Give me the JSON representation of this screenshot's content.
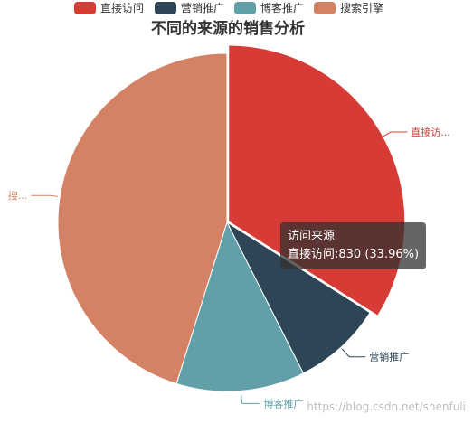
{
  "chart_data": {
    "type": "pie",
    "title": "不同的来源的销售分析",
    "legend_position": "top",
    "series_name": "访问来源",
    "slices": [
      {
        "name": "直接访问",
        "value": 830,
        "color": "#d63c35",
        "label": "直接访..."
      },
      {
        "name": "营销推广",
        "value": 210,
        "color": "#2e4556",
        "label": "营销推广"
      },
      {
        "name": "博客推广",
        "value": 300,
        "color": "#61a0a8",
        "label": "博客推广"
      },
      {
        "name": "搜索引擎",
        "value": 1104,
        "color": "#d48265",
        "label": "搜..."
      }
    ]
  },
  "tooltip": {
    "title": "访问来源",
    "body": "直接访问:830 (33.96%)"
  },
  "watermark": "https://blog.csdn.net/shenfuli"
}
